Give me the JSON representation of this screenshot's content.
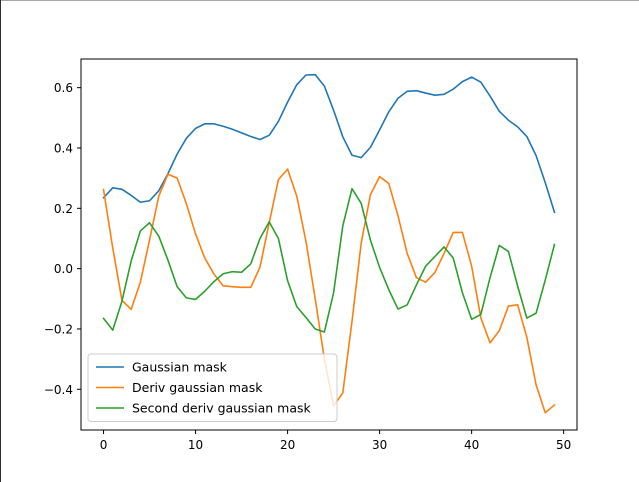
{
  "chart_data": {
    "type": "line",
    "title": "",
    "xlabel": "",
    "ylabel": "",
    "xlim": [
      -2.45,
      51.45
    ],
    "ylim": [
      -0.535,
      0.695
    ],
    "xticks": [
      0,
      10,
      20,
      30,
      40,
      50
    ],
    "xtick_labels": [
      "0",
      "10",
      "20",
      "30",
      "40",
      "50"
    ],
    "yticks": [
      -0.4,
      -0.2,
      0.0,
      0.2,
      0.4,
      0.6
    ],
    "ytick_labels": [
      "−0.4",
      "−0.2",
      "0.0",
      "0.2",
      "0.4",
      "0.6"
    ],
    "grid": false,
    "legend_position": "lower-left",
    "x": [
      0,
      1,
      2,
      3,
      4,
      5,
      6,
      7,
      8,
      9,
      10,
      11,
      12,
      13,
      14,
      15,
      16,
      17,
      18,
      19,
      20,
      21,
      22,
      23,
      24,
      25,
      26,
      27,
      28,
      29,
      30,
      31,
      32,
      33,
      34,
      35,
      36,
      37,
      38,
      39,
      40,
      41,
      42,
      43,
      44,
      45,
      46,
      47,
      48,
      49
    ],
    "series": [
      {
        "name": "Gaussian mask",
        "color": "#1f77b4",
        "values": [
          0.235,
          0.268,
          0.263,
          0.243,
          0.22,
          0.225,
          0.258,
          0.315,
          0.38,
          0.432,
          0.465,
          0.48,
          0.48,
          0.472,
          0.462,
          0.45,
          0.438,
          0.428,
          0.442,
          0.488,
          0.552,
          0.61,
          0.642,
          0.643,
          0.605,
          0.525,
          0.437,
          0.376,
          0.368,
          0.402,
          0.46,
          0.52,
          0.565,
          0.588,
          0.59,
          0.582,
          0.575,
          0.578,
          0.595,
          0.62,
          0.635,
          0.618,
          0.572,
          0.522,
          0.492,
          0.47,
          0.438,
          0.375,
          0.285,
          0.187
        ]
      },
      {
        "name": "Deriv gaussian mask",
        "color": "#ff7f0e",
        "values": [
          0.262,
          0.068,
          -0.105,
          -0.135,
          -0.045,
          0.095,
          0.24,
          0.313,
          0.3,
          0.215,
          0.115,
          0.035,
          -0.018,
          -0.057,
          -0.06,
          -0.062,
          -0.062,
          0.005,
          0.152,
          0.295,
          0.33,
          0.24,
          0.09,
          -0.1,
          -0.3,
          -0.455,
          -0.412,
          -0.175,
          0.085,
          0.245,
          0.305,
          0.282,
          0.175,
          0.05,
          -0.03,
          -0.045,
          -0.013,
          0.05,
          0.12,
          0.12,
          0.008,
          -0.163,
          -0.246,
          -0.206,
          -0.124,
          -0.12,
          -0.228,
          -0.385,
          -0.478,
          -0.452
        ]
      },
      {
        "name": "Second deriv gaussian mask",
        "color": "#2ca02c",
        "values": [
          -0.165,
          -0.204,
          -0.108,
          0.025,
          0.125,
          0.152,
          0.108,
          0.028,
          -0.06,
          -0.097,
          -0.102,
          -0.075,
          -0.043,
          -0.017,
          -0.01,
          -0.012,
          0.016,
          0.1,
          0.155,
          0.1,
          -0.04,
          -0.126,
          -0.162,
          -0.2,
          -0.21,
          -0.08,
          0.142,
          0.265,
          0.216,
          0.095,
          0.004,
          -0.07,
          -0.134,
          -0.12,
          -0.054,
          0.008,
          0.04,
          0.072,
          0.035,
          -0.08,
          -0.168,
          -0.152,
          -0.03,
          0.077,
          0.057,
          -0.058,
          -0.164,
          -0.148,
          -0.038,
          0.08
        ]
      }
    ]
  }
}
